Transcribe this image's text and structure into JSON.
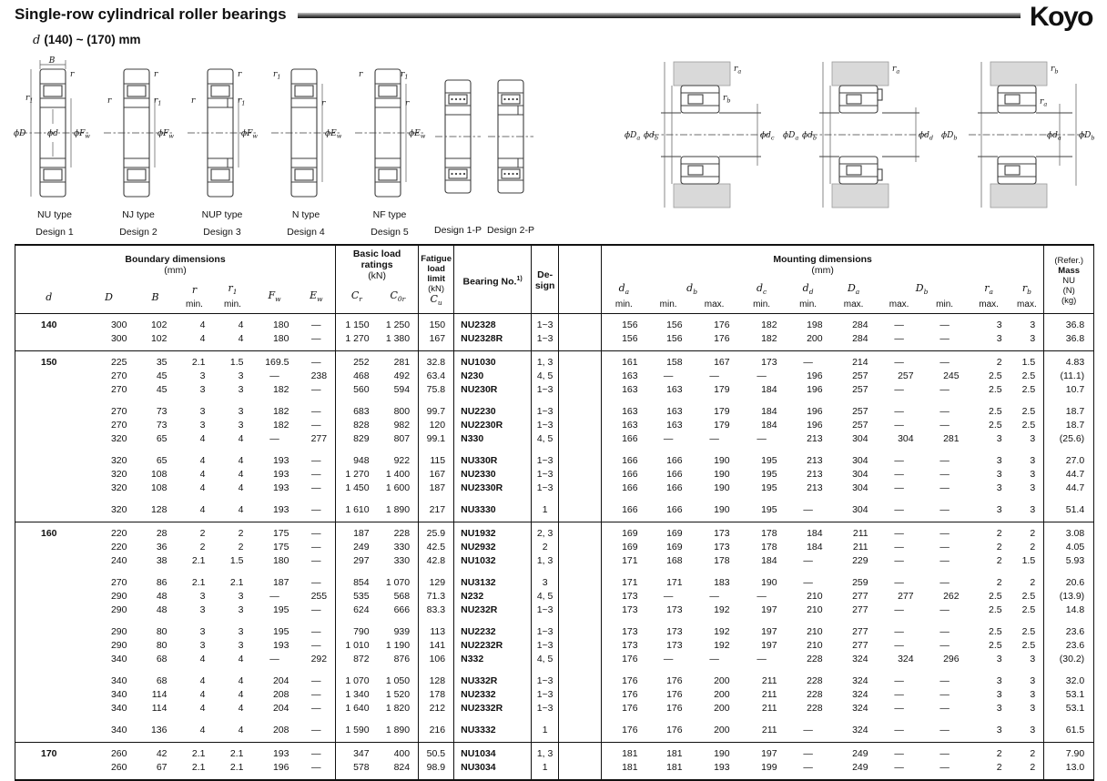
{
  "page": {
    "title": "Single-row cylindrical roller bearings",
    "brand": "Koyo",
    "subtitle_d": "d",
    "subtitle_range": "(140) ~ (170) mm"
  },
  "figures": {
    "captions": [
      {
        "type": "NU type",
        "design": "Design 1"
      },
      {
        "type": "NJ type",
        "design": "Design 2"
      },
      {
        "type": "NUP type",
        "design": "Design 3"
      },
      {
        "type": "N type",
        "design": "Design 4"
      },
      {
        "type": "NF type",
        "design": "Design 5"
      },
      {
        "type": "",
        "design": "Design 1-P"
      },
      {
        "type": "",
        "design": "Design 2-P"
      }
    ],
    "labels": {
      "B": "B",
      "r": "r",
      "r1b": "r",
      "r1s": "1",
      "phiD": "ϕD",
      "phid": "ϕd",
      "phiFb": "ϕF",
      "phiEb": "ϕE",
      "ws": "w",
      "phiDab": "ϕD",
      "as": "a",
      "phidbb": "ϕd",
      "bs": "b",
      "phidcb": "ϕd",
      "cs": "c",
      "phiddb": "ϕd",
      "ds": "d",
      "phiDbb": "ϕD",
      "phidab": "ϕd",
      "rab": "r",
      "ras": "a",
      "rbb": "r",
      "rbs": "b"
    }
  },
  "table": {
    "header": {
      "boundary_title": "Boundary dimensions",
      "boundary_unit": "(mm)",
      "load_title": "Basic load ratings",
      "load_unit": "(kN)",
      "fatigue_l1": "Fatigue",
      "fatigue_l2": "load limit",
      "fatigue_l3": "(kN)",
      "bearing_no": "Bearing No.",
      "bearing_no_sup": "1)",
      "design_l1": "De-",
      "design_l2": "sign",
      "mounting_title": "Mounting dimensions",
      "mounting_unit": "(mm)",
      "mass_l1": "(Refer.)",
      "mass_l2": "Mass",
      "mass_l3": "NU",
      "mass_l4": "(N)",
      "mass_l5": "(kg)",
      "min": "min.",
      "max": "max.",
      "sym": {
        "d": "d",
        "D": "D",
        "B": "B",
        "r": "r",
        "r1b": "r",
        "r1s": "1",
        "Fb": "F",
        "Eb": "E",
        "ws": "w",
        "Cb": "C",
        "Crs": "r",
        "C0rs": "0r",
        "Cus": "u",
        "dab": "d",
        "das": "a",
        "dbb": "d",
        "dbs": "b",
        "dcb": "d",
        "dcs": "c",
        "ddb": "d",
        "dds": "d",
        "Dab": "D",
        "Das": "a",
        "Dbb": "D",
        "Dbs": "b",
        "rab": "r",
        "ras": "a",
        "rbb": "r",
        "rbs": "b"
      }
    },
    "groups": [
      {
        "d": "140",
        "subgroups": [
          [
            [
              "300",
              "102",
              "4",
              "4",
              "180",
              "—",
              "1 150",
              "1 250",
              "150",
              "NU2328",
              "1~3",
              "156",
              "156",
              "176",
              "182",
              "198",
              "284",
              "—",
              "—",
              "3",
              "3",
              "36.8"
            ],
            [
              "300",
              "102",
              "4",
              "4",
              "180",
              "—",
              "1 270",
              "1 380",
              "167",
              "NU2328R",
              "1~3",
              "156",
              "156",
              "176",
              "182",
              "200",
              "284",
              "—",
              "—",
              "3",
              "3",
              "36.8"
            ]
          ]
        ]
      },
      {
        "d": "150",
        "subgroups": [
          [
            [
              "225",
              "35",
              "2.1",
              "1.5",
              "169.5",
              "—",
              "252",
              "281",
              "32.8",
              "NU1030",
              "1, 3",
              "161",
              "158",
              "167",
              "173",
              "—",
              "214",
              "—",
              "—",
              "2",
              "1.5",
              "4.83"
            ],
            [
              "270",
              "45",
              "3",
              "3",
              "—",
              "238",
              "468",
              "492",
              "63.4",
              "N230",
              "4, 5",
              "163",
              "—",
              "—",
              "—",
              "196",
              "257",
              "257",
              "245",
              "2.5",
              "2.5",
              "(11.1)"
            ],
            [
              "270",
              "45",
              "3",
              "3",
              "182",
              "—",
              "560",
              "594",
              "75.8",
              "NU230R",
              "1~3",
              "163",
              "163",
              "179",
              "184",
              "196",
              "257",
              "—",
              "—",
              "2.5",
              "2.5",
              "10.7"
            ]
          ],
          [
            [
              "270",
              "73",
              "3",
              "3",
              "182",
              "—",
              "683",
              "800",
              "99.7",
              "NU2230",
              "1~3",
              "163",
              "163",
              "179",
              "184",
              "196",
              "257",
              "—",
              "—",
              "2.5",
              "2.5",
              "18.7"
            ],
            [
              "270",
              "73",
              "3",
              "3",
              "182",
              "—",
              "828",
              "982",
              "120",
              "NU2230R",
              "1~3",
              "163",
              "163",
              "179",
              "184",
              "196",
              "257",
              "—",
              "—",
              "2.5",
              "2.5",
              "18.7"
            ],
            [
              "320",
              "65",
              "4",
              "4",
              "—",
              "277",
              "829",
              "807",
              "99.1",
              "N330",
              "4, 5",
              "166",
              "—",
              "—",
              "—",
              "213",
              "304",
              "304",
              "281",
              "3",
              "3",
              "(25.6)"
            ]
          ],
          [
            [
              "320",
              "65",
              "4",
              "4",
              "193",
              "—",
              "948",
              "922",
              "115",
              "NU330R",
              "1~3",
              "166",
              "166",
              "190",
              "195",
              "213",
              "304",
              "—",
              "—",
              "3",
              "3",
              "27.0"
            ],
            [
              "320",
              "108",
              "4",
              "4",
              "193",
              "—",
              "1 270",
              "1 400",
              "167",
              "NU2330",
              "1~3",
              "166",
              "166",
              "190",
              "195",
              "213",
              "304",
              "—",
              "—",
              "3",
              "3",
              "44.7"
            ],
            [
              "320",
              "108",
              "4",
              "4",
              "193",
              "—",
              "1 450",
              "1 600",
              "187",
              "NU2330R",
              "1~3",
              "166",
              "166",
              "190",
              "195",
              "213",
              "304",
              "—",
              "—",
              "3",
              "3",
              "44.7"
            ]
          ],
          [
            [
              "320",
              "128",
              "4",
              "4",
              "193",
              "—",
              "1 610",
              "1 890",
              "217",
              "NU3330",
              "1",
              "166",
              "166",
              "190",
              "195",
              "—",
              "304",
              "—",
              "—",
              "3",
              "3",
              "51.4"
            ]
          ]
        ]
      },
      {
        "d": "160",
        "subgroups": [
          [
            [
              "220",
              "28",
              "2",
              "2",
              "175",
              "—",
              "187",
              "228",
              "25.9",
              "NU1932",
              "2, 3",
              "169",
              "169",
              "173",
              "178",
              "184",
              "211",
              "—",
              "—",
              "2",
              "2",
              "3.08"
            ],
            [
              "220",
              "36",
              "2",
              "2",
              "175",
              "—",
              "249",
              "330",
              "42.5",
              "NU2932",
              "2",
              "169",
              "169",
              "173",
              "178",
              "184",
              "211",
              "—",
              "—",
              "2",
              "2",
              "4.05"
            ],
            [
              "240",
              "38",
              "2.1",
              "1.5",
              "180",
              "—",
              "297",
              "330",
              "42.8",
              "NU1032",
              "1, 3",
              "171",
              "168",
              "178",
              "184",
              "—",
              "229",
              "—",
              "—",
              "2",
              "1.5",
              "5.93"
            ]
          ],
          [
            [
              "270",
              "86",
              "2.1",
              "2.1",
              "187",
              "—",
              "854",
              "1 070",
              "129",
              "NU3132",
              "3",
              "171",
              "171",
              "183",
              "190",
              "—",
              "259",
              "—",
              "—",
              "2",
              "2",
              "20.6"
            ],
            [
              "290",
              "48",
              "3",
              "3",
              "—",
              "255",
              "535",
              "568",
              "71.3",
              "N232",
              "4, 5",
              "173",
              "—",
              "—",
              "—",
              "210",
              "277",
              "277",
              "262",
              "2.5",
              "2.5",
              "(13.9)"
            ],
            [
              "290",
              "48",
              "3",
              "3",
              "195",
              "—",
              "624",
              "666",
              "83.3",
              "NU232R",
              "1~3",
              "173",
              "173",
              "192",
              "197",
              "210",
              "277",
              "—",
              "—",
              "2.5",
              "2.5",
              "14.8"
            ]
          ],
          [
            [
              "290",
              "80",
              "3",
              "3",
              "195",
              "—",
              "790",
              "939",
              "113",
              "NU2232",
              "1~3",
              "173",
              "173",
              "192",
              "197",
              "210",
              "277",
              "—",
              "—",
              "2.5",
              "2.5",
              "23.6"
            ],
            [
              "290",
              "80",
              "3",
              "3",
              "193",
              "—",
              "1 010",
              "1 190",
              "141",
              "NU2232R",
              "1~3",
              "173",
              "173",
              "192",
              "197",
              "210",
              "277",
              "—",
              "—",
              "2.5",
              "2.5",
              "23.6"
            ],
            [
              "340",
              "68",
              "4",
              "4",
              "—",
              "292",
              "872",
              "876",
              "106",
              "N332",
              "4, 5",
              "176",
              "—",
              "—",
              "—",
              "228",
              "324",
              "324",
              "296",
              "3",
              "3",
              "(30.2)"
            ]
          ],
          [
            [
              "340",
              "68",
              "4",
              "4",
              "204",
              "—",
              "1 070",
              "1 050",
              "128",
              "NU332R",
              "1~3",
              "176",
              "176",
              "200",
              "211",
              "228",
              "324",
              "—",
              "—",
              "3",
              "3",
              "32.0"
            ],
            [
              "340",
              "114",
              "4",
              "4",
              "208",
              "—",
              "1 340",
              "1 520",
              "178",
              "NU2332",
              "1~3",
              "176",
              "176",
              "200",
              "211",
              "228",
              "324",
              "—",
              "—",
              "3",
              "3",
              "53.1"
            ],
            [
              "340",
              "114",
              "4",
              "4",
              "204",
              "—",
              "1 640",
              "1 820",
              "212",
              "NU2332R",
              "1~3",
              "176",
              "176",
              "200",
              "211",
              "228",
              "324",
              "—",
              "—",
              "3",
              "3",
              "53.1"
            ]
          ],
          [
            [
              "340",
              "136",
              "4",
              "4",
              "208",
              "—",
              "1 590",
              "1 890",
              "216",
              "NU3332",
              "1",
              "176",
              "176",
              "200",
              "211",
              "—",
              "324",
              "—",
              "—",
              "3",
              "3",
              "61.5"
            ]
          ]
        ]
      },
      {
        "d": "170",
        "subgroups": [
          [
            [
              "260",
              "42",
              "2.1",
              "2.1",
              "193",
              "—",
              "347",
              "400",
              "50.5",
              "NU1034",
              "1, 3",
              "181",
              "181",
              "190",
              "197",
              "—",
              "249",
              "—",
              "—",
              "2",
              "2",
              "7.90"
            ],
            [
              "260",
              "67",
              "2.1",
              "2.1",
              "196",
              "—",
              "578",
              "824",
              "98.9",
              "NU3034",
              "1",
              "181",
              "181",
              "193",
              "199",
              "—",
              "249",
              "—",
              "—",
              "2",
              "2",
              "13.0"
            ]
          ]
        ]
      }
    ]
  }
}
